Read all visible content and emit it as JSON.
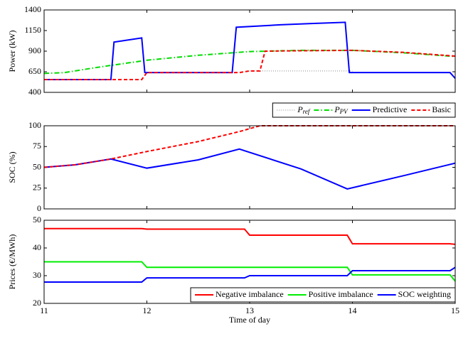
{
  "chart_data": [
    {
      "type": "line",
      "ylabel": "Power (kW)",
      "xlim": [
        11,
        15
      ],
      "xticks": [
        11,
        12,
        13,
        14,
        15
      ],
      "xticklabels": false,
      "ylim": [
        400,
        1400
      ],
      "yticks": [
        400,
        650,
        900,
        1150,
        1400
      ],
      "legend": "below right",
      "series": [
        {
          "name": "Pref",
          "math": true,
          "color": "#888888",
          "dash": "dot",
          "x": [
            13,
            14
          ],
          "values": [
            660,
            660
          ]
        },
        {
          "name": "PPV",
          "math": true,
          "color": "#00dd00",
          "dash": "dashdot",
          "x": [
            11,
            11.2,
            11.5,
            12,
            12.5,
            13,
            13.5,
            14,
            14.5,
            15
          ],
          "values": [
            630,
            640,
            700,
            790,
            850,
            895,
            910,
            910,
            880,
            835
          ]
        },
        {
          "name": "Predictive",
          "color": "#0000ff",
          "dash": "solid",
          "x": [
            11,
            11.65,
            11.68,
            11.95,
            11.98,
            12.83,
            12.87,
            13.3,
            13.6,
            13.93,
            13.97,
            14.95,
            15
          ],
          "values": [
            555,
            555,
            1010,
            1060,
            640,
            640,
            1190,
            1220,
            1235,
            1250,
            640,
            640,
            570
          ]
        },
        {
          "name": "Basic",
          "color": "#ff0000",
          "dash": "dash",
          "x": [
            11,
            11.95,
            12,
            12.9,
            13,
            13.1,
            13.15,
            13.5,
            14,
            14.5,
            15
          ],
          "values": [
            555,
            555,
            640,
            640,
            660,
            660,
            900,
            905,
            910,
            885,
            840
          ]
        }
      ]
    },
    {
      "type": "line",
      "ylabel": "SOC (%)",
      "xlim": [
        11,
        15
      ],
      "xticks": [
        11,
        12,
        13,
        14,
        15
      ],
      "xticklabels": false,
      "ylim": [
        0,
        100
      ],
      "yticks": [
        0,
        25,
        50,
        75,
        100
      ],
      "series": [
        {
          "color": "#0000ff",
          "dash": "solid",
          "x": [
            11,
            11.3,
            11.65,
            12,
            12.5,
            12.9,
            13.5,
            13.95,
            14.5,
            15
          ],
          "values": [
            50,
            53,
            60,
            49,
            59,
            72,
            48,
            24,
            40,
            55
          ]
        },
        {
          "color": "#ff0000",
          "dash": "dash",
          "x": [
            11,
            11.3,
            11.65,
            12,
            12.5,
            12.9,
            13.1,
            15
          ],
          "values": [
            50,
            53,
            60,
            69,
            81,
            93,
            100,
            100
          ]
        }
      ]
    },
    {
      "type": "line",
      "ylabel": "Prices (€/MWh)",
      "xlabel": "Time of day",
      "xlim": [
        11,
        15
      ],
      "xticks": [
        11,
        12,
        13,
        14,
        15
      ],
      "xticklabels": true,
      "ylim": [
        20,
        50
      ],
      "yticks": [
        20,
        30,
        40,
        50
      ],
      "legend": "lower right",
      "series": [
        {
          "name": "Negative imbalance",
          "color": "#ff0000",
          "dash": "solid",
          "x": [
            11,
            11.95,
            12,
            12.95,
            13,
            13.95,
            14,
            14.95,
            15
          ],
          "values": [
            47,
            47,
            46.8,
            46.8,
            44.6,
            44.6,
            41.5,
            41.5,
            41.3
          ]
        },
        {
          "name": "Positive imbalance",
          "color": "#00ee00",
          "dash": "solid",
          "x": [
            11,
            11.95,
            12,
            12.95,
            13,
            13.95,
            14,
            14.95,
            15
          ],
          "values": [
            35,
            35,
            33,
            33,
            33,
            33,
            30.3,
            30.3,
            28
          ]
        },
        {
          "name": "SOC weighting",
          "color": "#0000ff",
          "dash": "solid",
          "x": [
            11,
            11.95,
            12,
            12.95,
            13,
            13.95,
            14,
            14.95,
            15
          ],
          "values": [
            27.7,
            27.7,
            29.2,
            29.2,
            30,
            30,
            31.8,
            31.8,
            33
          ]
        }
      ]
    }
  ]
}
